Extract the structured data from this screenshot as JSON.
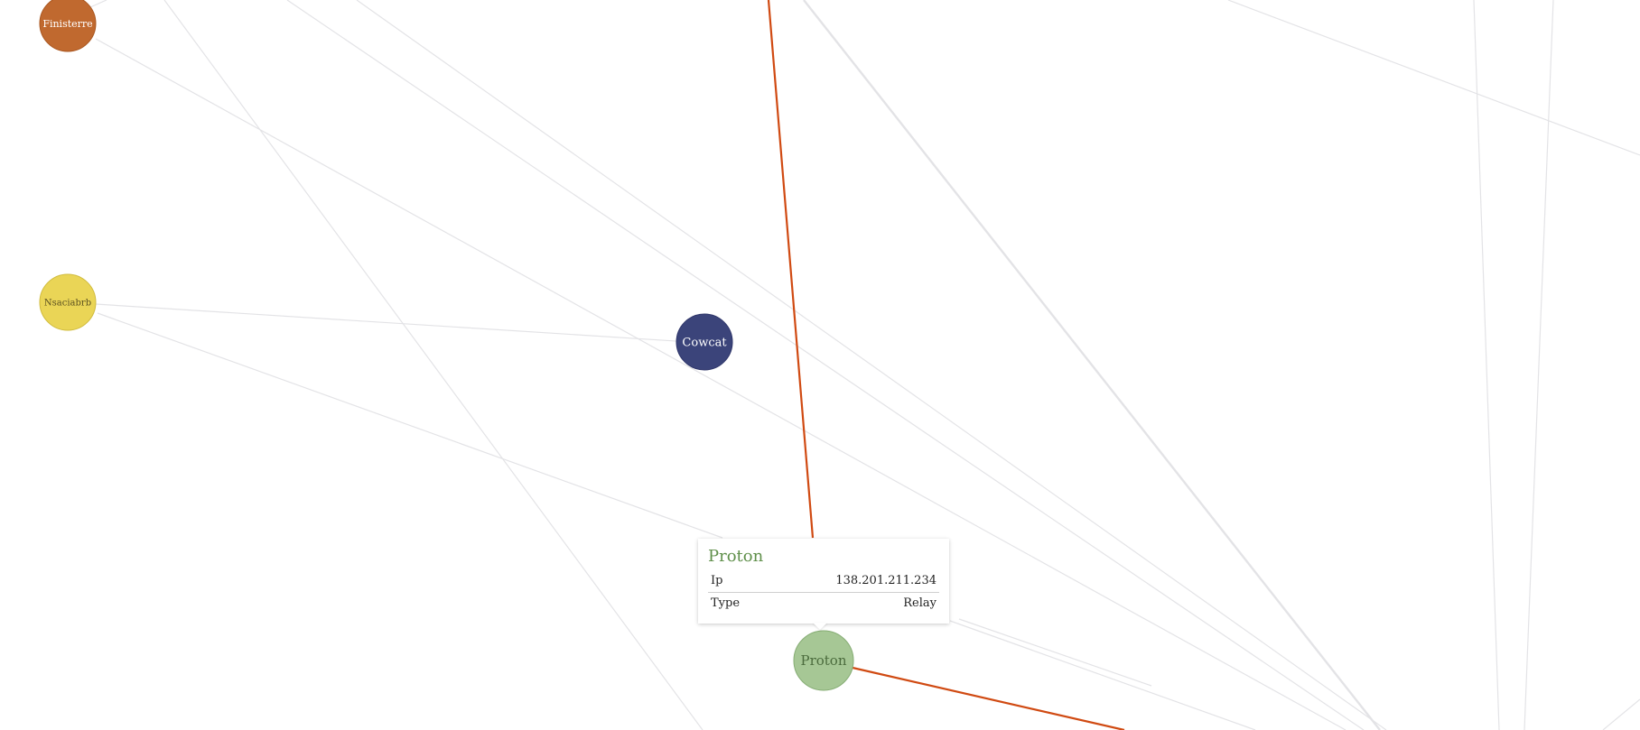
{
  "graph": {
    "nodes": [
      {
        "id": "finisterre",
        "label": "Finisterre",
        "color": "#c0692f",
        "text_color": "#ffffff"
      },
      {
        "id": "nsaciabrb",
        "label": "Nsaciabrb",
        "color": "#ead556",
        "text_color": "#5a5020"
      },
      {
        "id": "cowcat",
        "label": "Cowcat",
        "color": "#3b447a",
        "text_color": "#ffffff"
      },
      {
        "id": "proton",
        "label": "Proton",
        "color": "#a6c795",
        "text_color": "#4b6b3d"
      }
    ],
    "edge_color": "#e3e3e6",
    "highlight_edge_color": "#d04a12"
  },
  "tooltip": {
    "title": "Proton",
    "rows": [
      {
        "key": "Ip",
        "value": "138.201.211.234"
      },
      {
        "key": "Type",
        "value": "Relay"
      }
    ]
  }
}
